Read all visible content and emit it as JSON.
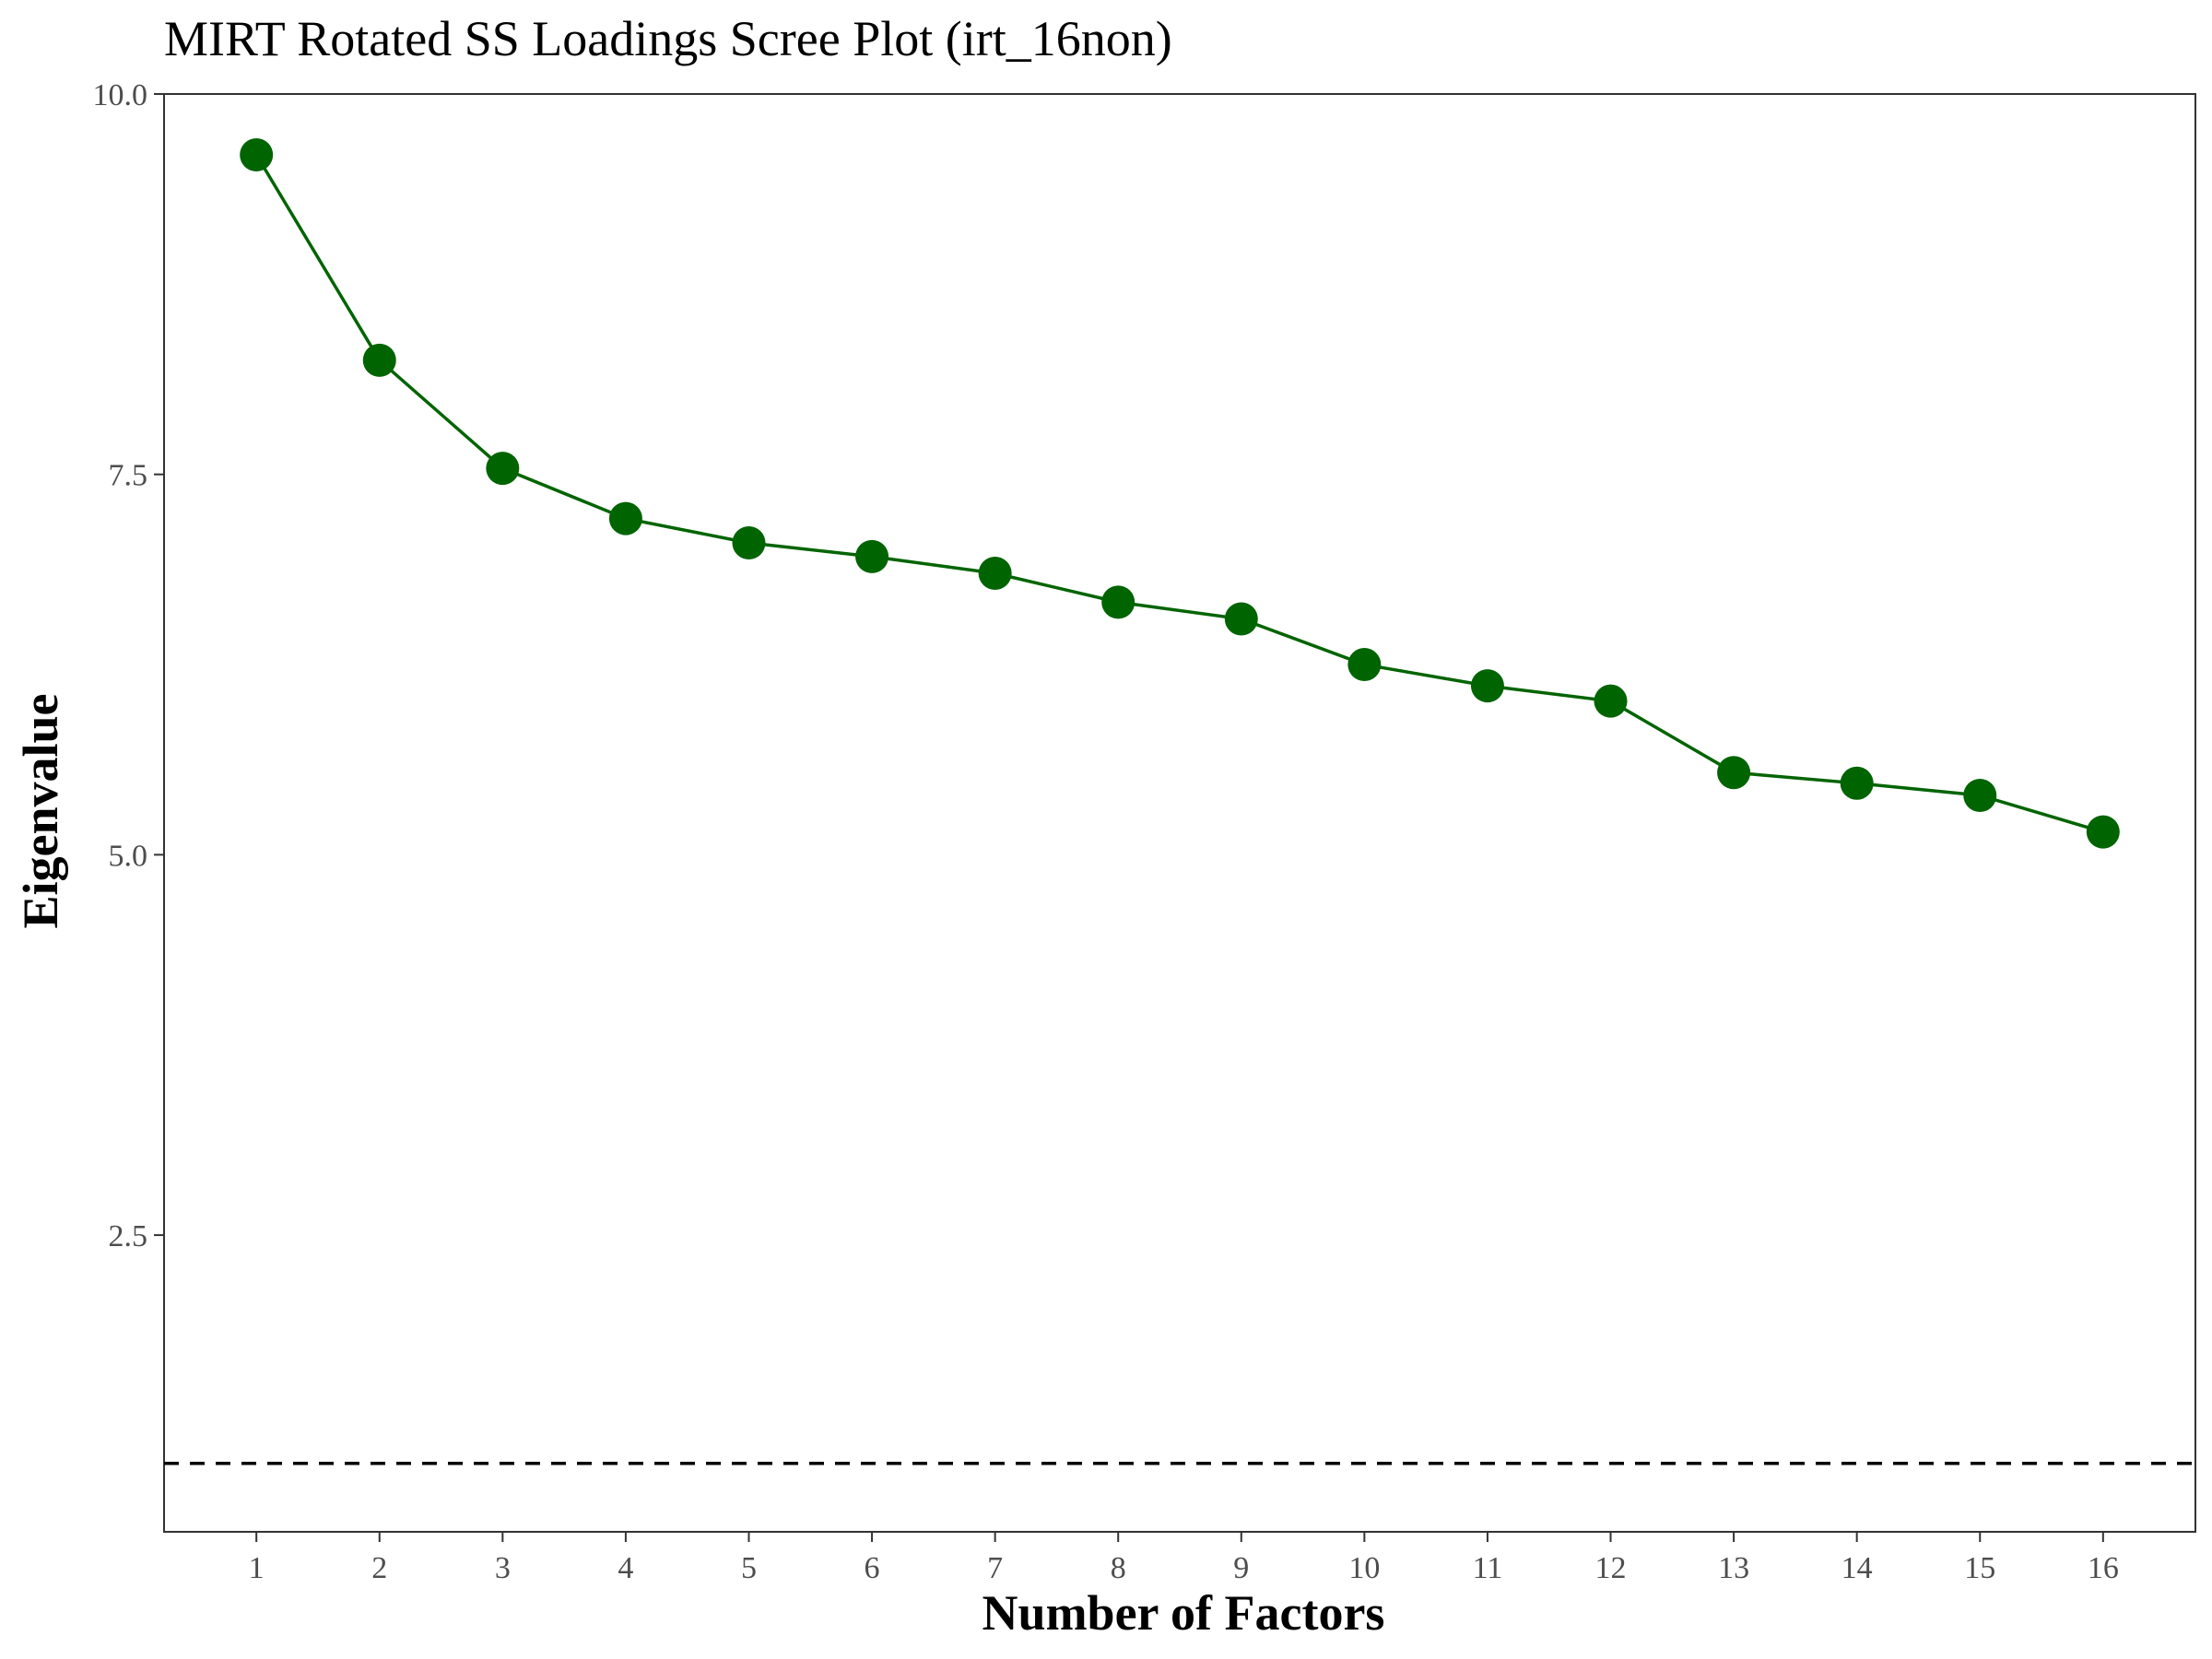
{
  "chart_data": {
    "type": "line",
    "title": "MIRT Rotated SS Loadings Scree Plot (irt_16non)",
    "xlabel": "Number of Factors",
    "ylabel": "Eigenvalue",
    "x": [
      1,
      2,
      3,
      4,
      5,
      6,
      7,
      8,
      9,
      10,
      11,
      12,
      13,
      14,
      15,
      16
    ],
    "values": [
      9.6,
      8.25,
      7.54,
      7.21,
      7.05,
      6.96,
      6.85,
      6.66,
      6.55,
      6.25,
      6.11,
      6.01,
      5.54,
      5.47,
      5.39,
      5.15
    ],
    "x_ticks": [
      "1",
      "2",
      "3",
      "4",
      "5",
      "6",
      "7",
      "8",
      "9",
      "10",
      "11",
      "12",
      "13",
      "14",
      "15",
      "16"
    ],
    "y_ticks": [
      "2.5",
      "5.0",
      "7.5",
      "10.0"
    ],
    "y_tick_values": [
      2.5,
      5.0,
      7.5,
      10.0
    ],
    "xlim": [
      0.25,
      16.75
    ],
    "ylim": [
      0.55,
      10.0
    ],
    "reference_line": {
      "y": 1.0,
      "style": "dashed",
      "color": "#000000"
    },
    "series_color": "#006400",
    "grid": false,
    "legend": "none"
  }
}
